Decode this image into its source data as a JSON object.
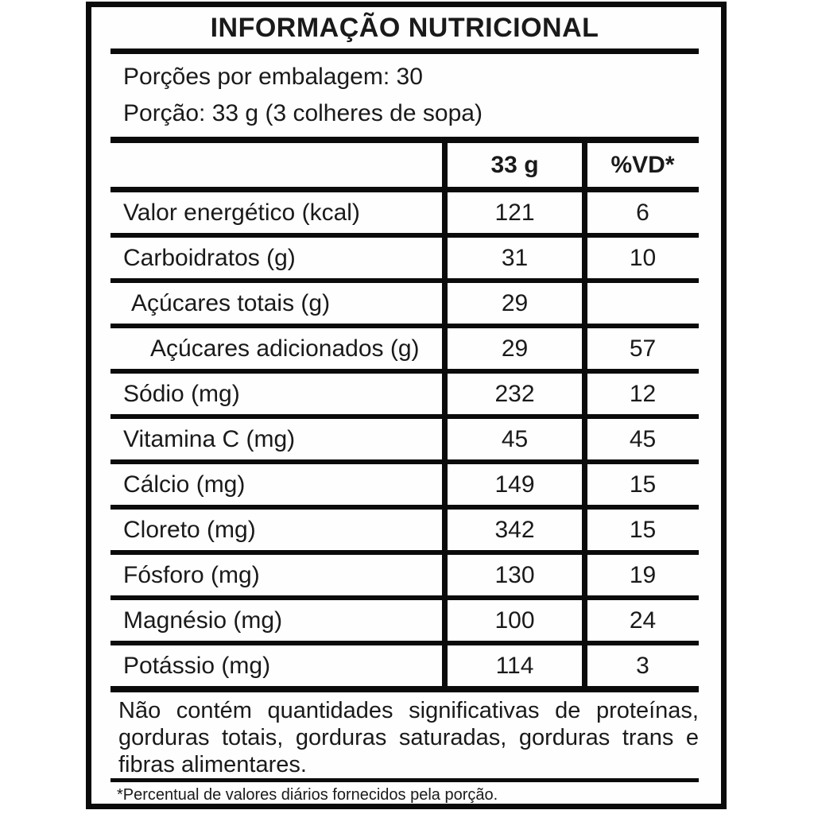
{
  "title": "INFORMAÇÃO NUTRICIONAL",
  "serving": {
    "servings_per_package": "Porções por embalagem: 30",
    "serving_size": "Porção: 33 g (3 colheres de sopa)"
  },
  "table": {
    "columns": [
      "",
      "33 g",
      "%VD*"
    ],
    "rows": [
      {
        "label": "Valor energético (kcal)",
        "amount": "121",
        "dv": "6",
        "indent": 0
      },
      {
        "label": "Carboidratos (g)",
        "amount": "31",
        "dv": "10",
        "indent": 0
      },
      {
        "label": "Açúcares totais (g)",
        "amount": "29",
        "dv": "",
        "indent": 1
      },
      {
        "label": "Açúcares adicionados (g)",
        "amount": "29",
        "dv": "57",
        "indent": 2
      },
      {
        "label": "Sódio (mg)",
        "amount": "232",
        "dv": "12",
        "indent": 0
      },
      {
        "label": "Vitamina C (mg)",
        "amount": "45",
        "dv": "45",
        "indent": 0
      },
      {
        "label": "Cálcio (mg)",
        "amount": "149",
        "dv": "15",
        "indent": 0
      },
      {
        "label": "Cloreto (mg)",
        "amount": "342",
        "dv": "15",
        "indent": 0
      },
      {
        "label": "Fósforo (mg)",
        "amount": "130",
        "dv": "19",
        "indent": 0
      },
      {
        "label": "Magnésio (mg)",
        "amount": "100",
        "dv": "24",
        "indent": 0
      },
      {
        "label": "Potássio (mg)",
        "amount": "114",
        "dv": "3",
        "indent": 0
      }
    ]
  },
  "note": {
    "lines": [
      "Não contém quantidades significativas de proteínas,",
      "gorduras totais, gorduras saturadas, gorduras trans e",
      "fibras alimentares."
    ]
  },
  "footnote": "*Percentual de valores diários fornecidos pela porção.",
  "colors": {
    "border": "#0b0b0b",
    "text": "#1a1a1a",
    "background": "#fefefe"
  }
}
